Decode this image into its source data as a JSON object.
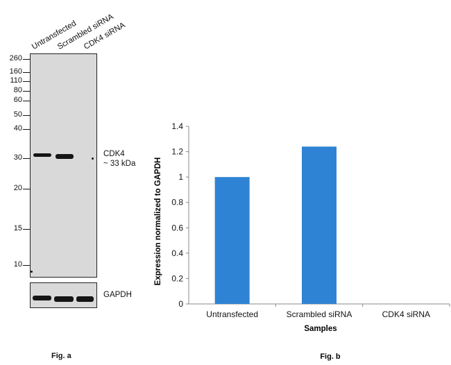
{
  "western_blot": {
    "lane_labels": [
      "Untransfected",
      "Scrambled siRNA",
      "CDK4 siRNA"
    ],
    "mw_markers": [
      "260",
      "160",
      "110",
      "80",
      "60",
      "50",
      "40",
      "30",
      "20",
      "15",
      "10"
    ],
    "target_label": "CDK4",
    "target_size": "~ 33 kDa",
    "loading_control": "GAPDH",
    "figure_label": "Fig. a"
  },
  "chart_data": {
    "type": "bar",
    "categories": [
      "Untransfected",
      "Scrambled siRNA",
      "CDK4 siRNA"
    ],
    "values": [
      1.0,
      1.24,
      0.0
    ],
    "xlabel": "Samples",
    "ylabel": "Expression normalized to GAPDH",
    "ylim": [
      0,
      1.4
    ],
    "yticks": [
      0,
      0.2,
      0.4,
      0.6,
      0.8,
      1,
      1.2,
      1.4
    ],
    "bar_color": "#2f83d4",
    "grid": false,
    "figure_label": "Fig. b"
  }
}
